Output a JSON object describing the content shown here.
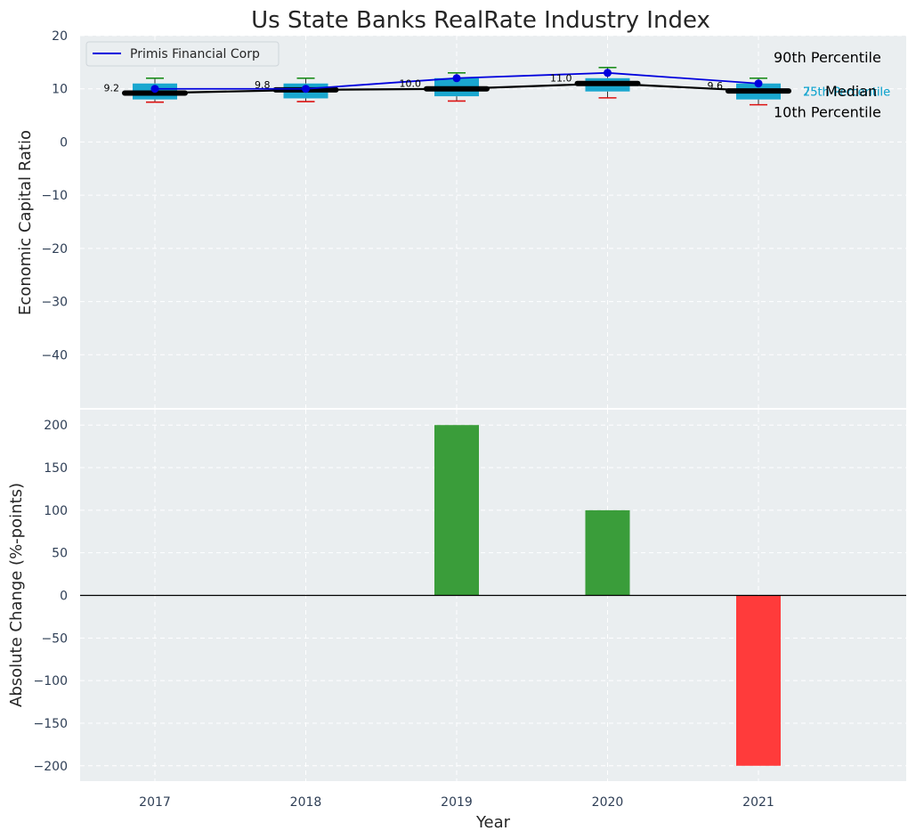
{
  "chart_data": [
    {
      "type": "box",
      "title": "Us State Banks RealRate Industry Index",
      "ylabel": "Economic Capital Ratio",
      "ylim": [
        -50,
        20
      ],
      "yticks": [
        20,
        10,
        0,
        -10,
        -20,
        -30,
        -40
      ],
      "categories": [
        "2017",
        "2018",
        "2019",
        "2020",
        "2021"
      ],
      "boxes": [
        {
          "p10": 7.5,
          "p25": 8.0,
          "median": 9.2,
          "p75": 11.0,
          "p90": 12.0
        },
        {
          "p10": 7.6,
          "p25": 8.2,
          "median": 9.8,
          "p75": 11.0,
          "p90": 12.0
        },
        {
          "p10": 7.7,
          "p25": 8.6,
          "median": 10.0,
          "p75": 12.0,
          "p90": 13.0
        },
        {
          "p10": 8.3,
          "p25": 9.5,
          "median": 11.0,
          "p75": 12.0,
          "p90": 14.0
        },
        {
          "p10": 7.0,
          "p25": 8.0,
          "median": 9.6,
          "p75": 11.0,
          "p90": 12.0
        }
      ],
      "median_labels": [
        "9.2",
        "9.8",
        "10.0",
        "11.0",
        "9.6"
      ],
      "series": [
        {
          "name": "Primis Financial Corp",
          "values": [
            10.0,
            10.0,
            12.0,
            13.0,
            11.0
          ],
          "color": "#0000dd"
        }
      ],
      "annotations": {
        "p90": "90th Percentile",
        "p75": "75th Percentile",
        "median": "Median",
        "p25": "25th Percentile",
        "p10": "10th Percentile"
      },
      "colors": {
        "box": "#1aa7cf",
        "median": "#000000",
        "whisker_top": "#1e8f1e",
        "whisker_bottom": "#dd1111"
      },
      "legend": "top-left",
      "grid": true
    },
    {
      "type": "bar",
      "xlabel": "Year",
      "ylabel": "Absolute Change (%-points)",
      "ylim": [
        -218,
        218
      ],
      "yticks": [
        200,
        150,
        100,
        50,
        0,
        -50,
        -100,
        -150,
        -200
      ],
      "categories": [
        "2017",
        "2018",
        "2019",
        "2020",
        "2021"
      ],
      "values": [
        0,
        0,
        200,
        100,
        -200
      ],
      "colors": {
        "positive": "#3a9d3a",
        "negative": "#ff3b3b"
      },
      "grid": true
    }
  ]
}
